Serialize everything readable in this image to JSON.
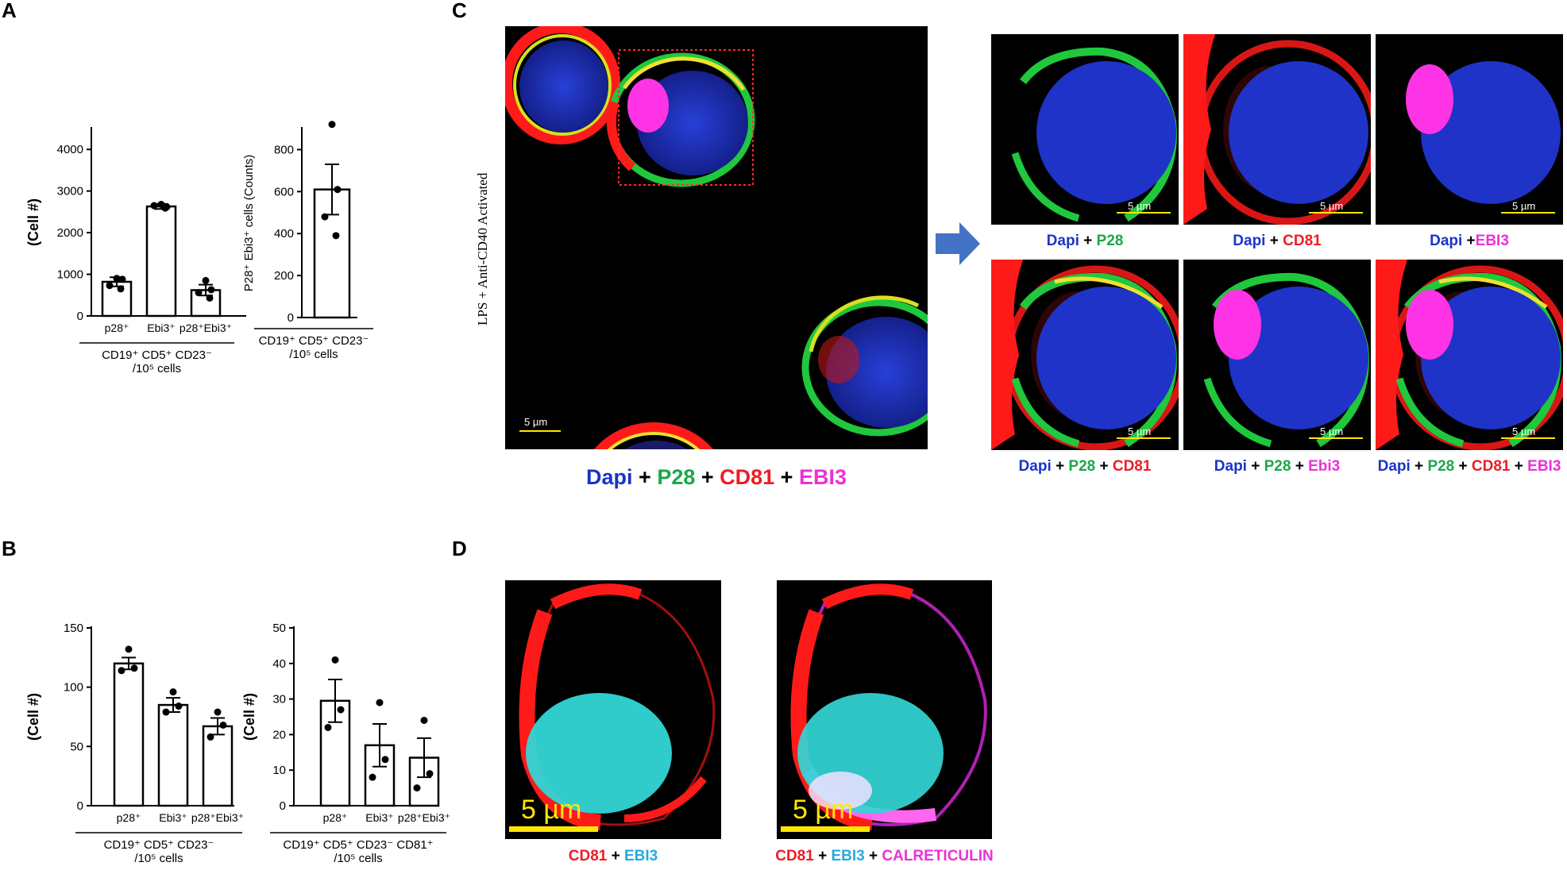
{
  "panels": {
    "A": {
      "letter": "A",
      "chart1": {
        "ylabel": "(Cell #)",
        "yticks": [
          "0",
          "1000",
          "2000",
          "3000",
          "4000"
        ],
        "ylim": [
          0,
          4500
        ],
        "categories": [
          "p28⁺",
          "Ebi3⁺",
          "p28⁺Ebi3⁺"
        ],
        "group_label_1": "CD19⁺ CD5⁺ CD23⁻",
        "group_label_2": "/10⁵ cells"
      },
      "chart2": {
        "ylabel": "P28⁺ Ebi3⁺ cells (Counts)",
        "yticks": [
          "0",
          "200",
          "400",
          "600",
          "800"
        ],
        "ylim": [
          0,
          900
        ],
        "group_label_1": "CD19⁺ CD5⁺ CD23⁻",
        "group_label_2": "/10⁵ cells"
      }
    },
    "B": {
      "letter": "B",
      "chart1": {
        "ylabel": "(Cell #)",
        "yticks": [
          "0",
          "50",
          "100",
          "150"
        ],
        "ylim": [
          0,
          150
        ],
        "categories": [
          "p28⁺",
          "Ebi3⁺",
          "p28⁺Ebi3⁺"
        ],
        "group_label_1": "CD19⁺ CD5⁺ CD23⁻",
        "group_label_2": "/10⁵ cells"
      },
      "chart2": {
        "ylabel": "(Cell #)",
        "yticks": [
          "0",
          "10",
          "20",
          "30",
          "40",
          "50"
        ],
        "ylim": [
          0,
          50
        ],
        "categories": [
          "p28⁺",
          "Ebi3⁺",
          "p28⁺Ebi3⁺"
        ],
        "group_label_1": "CD19⁺ CD5⁺ CD23⁻ CD81⁺",
        "group_label_2": "/10⁵ cells"
      }
    },
    "C": {
      "letter": "C",
      "side_label": "LPS + Anti-CD40 Activated",
      "scale_label": "5 µm",
      "main_caption": [
        {
          "text": "Dapi",
          "color": "blue"
        },
        {
          "text": " + ",
          "color": "black"
        },
        {
          "text": "P28",
          "color": "green"
        },
        {
          "text": " + ",
          "color": "black"
        },
        {
          "text": "CD81",
          "color": "red"
        },
        {
          "text": " + ",
          "color": "black"
        },
        {
          "text": "EBI3",
          "color": "mag"
        }
      ],
      "tiles": [
        {
          "caption": [
            {
              "text": "Dapi",
              "color": "blue"
            },
            {
              "text": " + ",
              "color": "black"
            },
            {
              "text": "P28",
              "color": "green"
            }
          ]
        },
        {
          "caption": [
            {
              "text": "Dapi",
              "color": "blue"
            },
            {
              "text": " + ",
              "color": "black"
            },
            {
              "text": "CD81",
              "color": "red"
            }
          ]
        },
        {
          "caption": [
            {
              "text": "Dapi",
              "color": "blue"
            },
            {
              "text": " +",
              "color": "black"
            },
            {
              "text": "EBI3",
              "color": "mag"
            }
          ]
        },
        {
          "caption": [
            {
              "text": "Dapi",
              "color": "blue"
            },
            {
              "text": " + ",
              "color": "black"
            },
            {
              "text": "P28",
              "color": "green"
            },
            {
              "text": " + ",
              "color": "black"
            },
            {
              "text": "CD81",
              "color": "red"
            }
          ]
        },
        {
          "caption": [
            {
              "text": "Dapi",
              "color": "blue"
            },
            {
              "text": " + ",
              "color": "black"
            },
            {
              "text": "P28",
              "color": "green"
            },
            {
              "text": " + ",
              "color": "black"
            },
            {
              "text": "Ebi3",
              "color": "mag"
            }
          ]
        },
        {
          "caption": [
            {
              "text": "Dapi",
              "color": "blue"
            },
            {
              "text": " + ",
              "color": "black"
            },
            {
              "text": "P28",
              "color": "green"
            },
            {
              "text": " + ",
              "color": "black"
            },
            {
              "text": "CD81",
              "color": "red"
            },
            {
              "text": " + ",
              "color": "black"
            },
            {
              "text": "EBI3",
              "color": "mag"
            }
          ]
        }
      ]
    },
    "D": {
      "letter": "D",
      "scale_label": "5 µm",
      "caption_left": [
        {
          "text": "CD81",
          "color": "red"
        },
        {
          "text": " + ",
          "color": "black"
        },
        {
          "text": "EBI3",
          "color": "cyan"
        }
      ],
      "caption_right": [
        {
          "text": "CD81",
          "color": "red"
        },
        {
          "text": " + ",
          "color": "black"
        },
        {
          "text": "EBI3",
          "color": "cyan"
        },
        {
          "text": " + ",
          "color": "black"
        },
        {
          "text": "CALRETICULIN",
          "color": "mag"
        }
      ]
    }
  },
  "colors": {
    "dapi": "#1a2fc0",
    "p28": "#1fc83c",
    "cd81": "#ff1a1a",
    "ebi3": "#ff33e6",
    "ebi3_cyan": "#33d6d6",
    "scalebar": "#ffe600"
  },
  "chart_data": [
    {
      "type": "bar",
      "panel": "A-left",
      "categories": [
        "p28⁺",
        "Ebi3⁺",
        "p28⁺Ebi3⁺"
      ],
      "values": [
        820,
        2630,
        620
      ],
      "errors": [
        110,
        60,
        130
      ],
      "points": [
        [
          900,
          880,
          730,
          650
        ],
        [
          2680,
          2620,
          2650,
          2590
        ],
        [
          850,
          630,
          560,
          430
        ]
      ],
      "ylabel": "(Cell #)",
      "ylim": [
        0,
        4500
      ],
      "yticks": [
        0,
        1000,
        2000,
        3000,
        4000
      ]
    },
    {
      "type": "bar",
      "panel": "A-right",
      "categories": [
        "CD19⁺ CD5⁺ CD23⁻"
      ],
      "values": [
        610
      ],
      "errors": [
        120
      ],
      "points": [
        [
          920,
          610,
          480,
          390
        ]
      ],
      "ylabel": "P28⁺ Ebi3⁺ cells (Counts)",
      "ylim": [
        0,
        900
      ],
      "yticks": [
        0,
        200,
        400,
        600,
        800
      ]
    },
    {
      "type": "bar",
      "panel": "B-left",
      "categories": [
        "p28⁺",
        "Ebi3⁺",
        "p28⁺Ebi3⁺"
      ],
      "values": [
        120,
        85,
        67
      ],
      "errors": [
        5,
        6,
        7
      ],
      "points": [
        [
          132,
          116,
          114
        ],
        [
          96,
          84,
          79
        ],
        [
          79,
          68,
          58
        ]
      ],
      "ylabel": "(Cell #)",
      "ylim": [
        0,
        150
      ],
      "yticks": [
        0,
        50,
        100,
        150
      ]
    },
    {
      "type": "bar",
      "panel": "B-right",
      "categories": [
        "p28⁺",
        "Ebi3⁺",
        "p28⁺Ebi3⁺"
      ],
      "values": [
        29.5,
        17,
        13.5
      ],
      "errors": [
        6,
        6,
        5.5
      ],
      "points": [
        [
          41,
          27,
          22
        ],
        [
          29,
          13,
          8
        ],
        [
          24,
          9,
          5
        ]
      ],
      "ylabel": "(Cell #)",
      "ylim": [
        0,
        50
      ],
      "yticks": [
        0,
        10,
        20,
        30,
        40,
        50
      ]
    }
  ]
}
